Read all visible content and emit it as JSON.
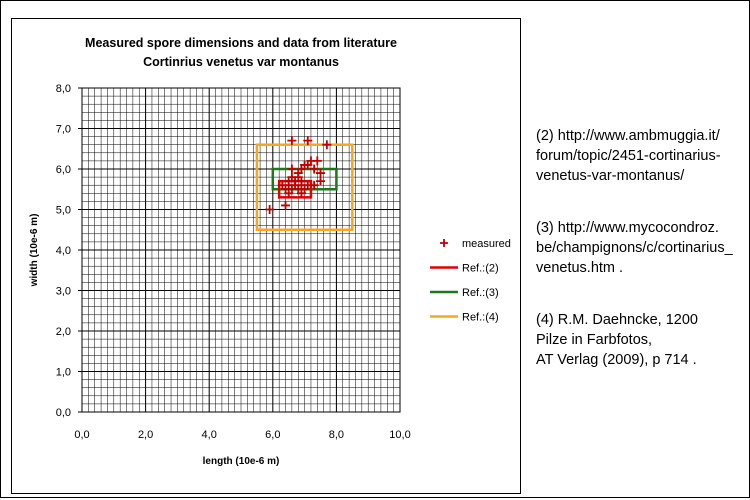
{
  "chart_data": {
    "type": "scatter",
    "title": "Measured spore dimensions and data from literature",
    "subtitle": "Cortinrius venetus var montanus",
    "xlabel": "length (10e-6 m)",
    "ylabel": "width (10e-6 m)",
    "xlim": [
      0,
      10
    ],
    "ylim": [
      0,
      8
    ],
    "x_ticks": [
      "0,0",
      "2,0",
      "4,0",
      "6,0",
      "8,0",
      "10,0"
    ],
    "y_ticks": [
      "0,0",
      "1,0",
      "2,0",
      "3,0",
      "4,0",
      "5,0",
      "6,0",
      "7,0",
      "8,0"
    ],
    "grid": true,
    "legend_position": "right",
    "series": [
      {
        "name": "measured",
        "marker": "plus",
        "color": "#c00000",
        "points": [
          {
            "x": 5.9,
            "y": 5.0
          },
          {
            "x": 6.4,
            "y": 5.1
          },
          {
            "x": 6.6,
            "y": 6.7
          },
          {
            "x": 7.1,
            "y": 6.7
          },
          {
            "x": 7.7,
            "y": 6.6
          },
          {
            "x": 7.2,
            "y": 6.2
          },
          {
            "x": 7.4,
            "y": 6.2
          },
          {
            "x": 7.3,
            "y": 6.0
          },
          {
            "x": 7.5,
            "y": 5.9
          },
          {
            "x": 7.5,
            "y": 5.7
          },
          {
            "x": 6.6,
            "y": 6.0
          },
          {
            "x": 6.8,
            "y": 5.9
          },
          {
            "x": 6.6,
            "y": 5.8
          },
          {
            "x": 6.8,
            "y": 5.8
          },
          {
            "x": 6.7,
            "y": 5.7
          },
          {
            "x": 6.5,
            "y": 5.7
          },
          {
            "x": 6.9,
            "y": 5.7
          },
          {
            "x": 6.3,
            "y": 5.6
          },
          {
            "x": 6.5,
            "y": 5.6
          },
          {
            "x": 6.7,
            "y": 5.6
          },
          {
            "x": 6.9,
            "y": 5.6
          },
          {
            "x": 7.1,
            "y": 5.6
          },
          {
            "x": 7.3,
            "y": 5.6
          },
          {
            "x": 6.4,
            "y": 5.5
          },
          {
            "x": 6.6,
            "y": 5.5
          },
          {
            "x": 6.8,
            "y": 5.5
          },
          {
            "x": 7.0,
            "y": 5.5
          },
          {
            "x": 6.5,
            "y": 5.4
          },
          {
            "x": 6.9,
            "y": 5.4
          },
          {
            "x": 7.0,
            "y": 6.1
          },
          {
            "x": 7.1,
            "y": 6.1
          },
          {
            "x": 6.9,
            "y": 6.0
          }
        ]
      },
      {
        "name": "Ref.:(2)",
        "type": "rectangle",
        "color": "#e00000",
        "x": [
          6.2,
          7.2
        ],
        "y": [
          5.3,
          5.7
        ]
      },
      {
        "name": "Ref.:(3)",
        "type": "rectangle",
        "color": "#1a7a1a",
        "x": [
          6.0,
          8.0
        ],
        "y": [
          5.5,
          6.0
        ]
      },
      {
        "name": "Ref.:(4)",
        "type": "rectangle",
        "color": "#f5a623",
        "x": [
          5.5,
          8.5
        ],
        "y": [
          4.5,
          6.6
        ]
      }
    ]
  },
  "references": [
    "(2) http://www.ambmuggia.it/\nforum/topic/2451-cortinarius-\nvenetus-var-montanus/",
    "(3) http://www.mycocondroz.\nbe/champignons/c/cortinarius_\nvenetus.htm .",
    "(4) R.M. Daehncke, 1200\nPilze in Farbfotos,\nAT Verlag (2009), p 714 ."
  ]
}
